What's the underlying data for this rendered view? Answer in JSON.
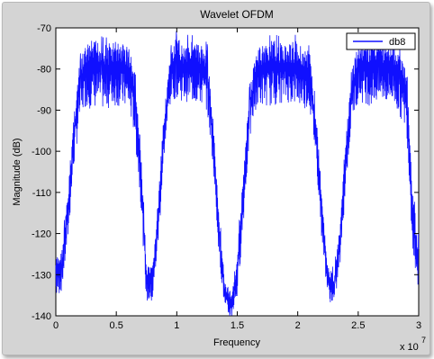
{
  "chart_data": {
    "type": "line",
    "title": "Wavelet OFDM",
    "xlabel": "Frequency",
    "ylabel": "Magnitude (dB)",
    "x_multiplier_label": "x 10",
    "x_multiplier_exp": "7",
    "xlim": [
      0,
      3
    ],
    "ylim": [
      -140,
      -70
    ],
    "xticks": [
      0,
      0.5,
      1,
      1.5,
      2,
      2.5,
      3
    ],
    "xtick_labels": [
      "0",
      "0.5",
      "1",
      "1.5",
      "2",
      "2.5",
      "3"
    ],
    "yticks": [
      -140,
      -130,
      -120,
      -110,
      -100,
      -90,
      -80,
      -70
    ],
    "ytick_labels": [
      "-140",
      "-130",
      "-120",
      "-110",
      "-100",
      "-90",
      "-80",
      "-70"
    ],
    "grid": false,
    "legend": "top-right",
    "colors": {
      "line": "#1010ff",
      "axes_bg": "#ffffff",
      "figure_bg": "#d4d4d4"
    },
    "series": [
      {
        "name": "db8",
        "x": [
          0,
          0.05,
          0.1,
          0.15,
          0.2,
          0.25,
          0.3,
          0.35,
          0.4,
          0.5,
          0.6,
          0.65,
          0.7,
          0.75,
          0.8,
          0.85,
          0.9,
          0.95,
          1.0,
          1.05,
          1.1,
          1.2,
          1.25,
          1.3,
          1.35,
          1.4,
          1.45,
          1.5,
          1.55,
          1.6,
          1.65,
          1.7,
          1.8,
          1.9,
          2.0,
          2.1,
          2.15,
          2.2,
          2.25,
          2.3,
          2.35,
          2.4,
          2.45,
          2.5,
          2.6,
          2.7,
          2.8,
          2.9,
          2.95,
          3.0
        ],
        "upper": [
          -126,
          -124,
          -110,
          -90,
          -78,
          -74,
          -73,
          -73,
          -74,
          -73,
          -74,
          -80,
          -98,
          -128,
          -128,
          -110,
          -88,
          -76,
          -72,
          -74,
          -73,
          -74,
          -75,
          -92,
          -116,
          -132,
          -134,
          -125,
          -105,
          -86,
          -76,
          -74,
          -73,
          -74,
          -73,
          -76,
          -90,
          -110,
          -128,
          -130,
          -118,
          -96,
          -80,
          -74,
          -73,
          -74,
          -74,
          -80,
          -110,
          -122
        ],
        "lower": [
          -136,
          -134,
          -122,
          -104,
          -92,
          -89,
          -90,
          -89,
          -90,
          -89,
          -90,
          -96,
          -112,
          -137,
          -137,
          -122,
          -100,
          -88,
          -87,
          -88,
          -88,
          -89,
          -90,
          -104,
          -126,
          -140,
          -141,
          -136,
          -118,
          -98,
          -90,
          -89,
          -89,
          -88,
          -89,
          -90,
          -102,
          -122,
          -136,
          -138,
          -128,
          -108,
          -92,
          -88,
          -89,
          -88,
          -89,
          -95,
          -124,
          -135
        ]
      }
    ]
  }
}
